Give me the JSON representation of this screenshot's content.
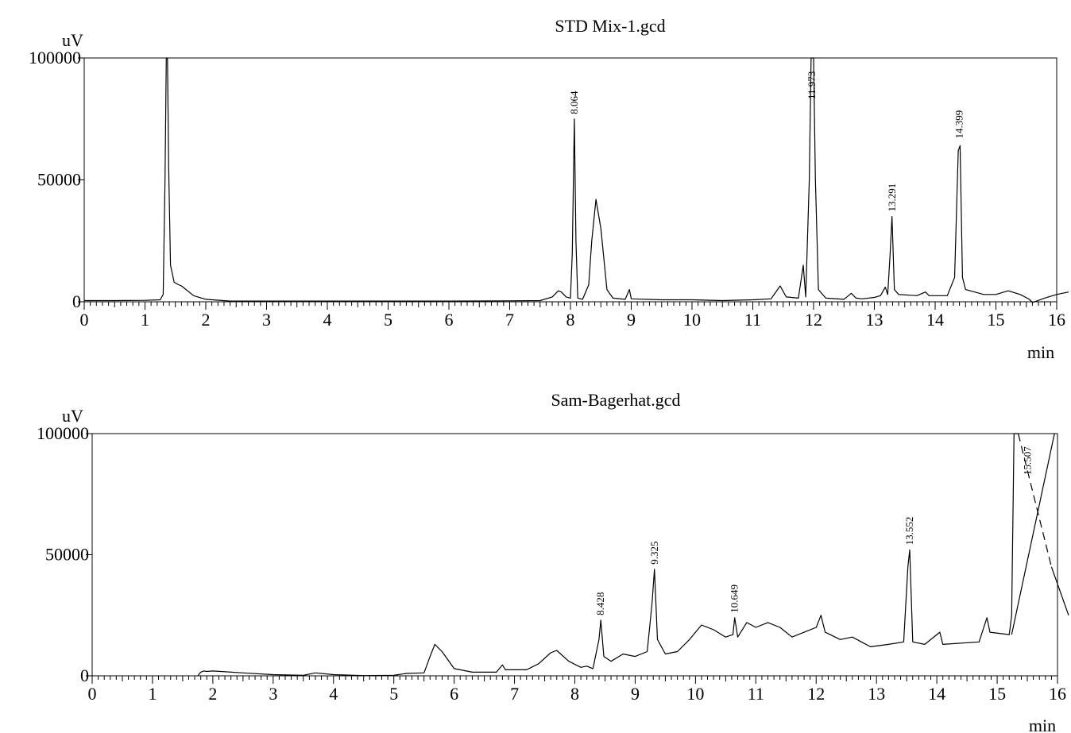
{
  "chart_data": [
    {
      "type": "line",
      "title": "STD Mix-1.gcd",
      "xlabel": "min",
      "ylabel": "uV",
      "xlim": [
        0,
        16
      ],
      "ylim": [
        0,
        100000
      ],
      "x_ticks": [
        "0",
        "1",
        "2",
        "3",
        "4",
        "5",
        "6",
        "7",
        "8",
        "9",
        "10",
        "11",
        "12",
        "13",
        "14",
        "15",
        "16"
      ],
      "y_ticks": [
        "0",
        "50000",
        "100000"
      ],
      "peaks": [
        {
          "rt": 8.064,
          "label": "8.064",
          "height": 75000
        },
        {
          "rt": 11.973,
          "label": "11.973",
          "height": 100000
        },
        {
          "rt": 13.291,
          "label": "13.291",
          "height": 35000
        },
        {
          "rt": 14.399,
          "label": "14.399",
          "height": 65000
        }
      ],
      "series": [
        {
          "values": [
            [
              0,
              500
            ],
            [
              0.5,
              500
            ],
            [
              1.0,
              600
            ],
            [
              1.25,
              800
            ],
            [
              1.3,
              3000
            ],
            [
              1.33,
              50000
            ],
            [
              1.35,
              100000
            ],
            [
              1.37,
              100000
            ],
            [
              1.39,
              55000
            ],
            [
              1.42,
              15000
            ],
            [
              1.48,
              8000
            ],
            [
              1.55,
              7000
            ],
            [
              1.6,
              6500
            ],
            [
              1.8,
              2500
            ],
            [
              2.0,
              1000
            ],
            [
              2.4,
              300
            ],
            [
              3,
              300
            ],
            [
              4,
              300
            ],
            [
              5,
              300
            ],
            [
              6,
              300
            ],
            [
              7,
              400
            ],
            [
              7.5,
              500
            ],
            [
              7.7,
              2000
            ],
            [
              7.8,
              4500
            ],
            [
              7.85,
              4000
            ],
            [
              7.93,
              2000
            ],
            [
              8.0,
              1500
            ],
            [
              8.03,
              20000
            ],
            [
              8.064,
              75000
            ],
            [
              8.09,
              25000
            ],
            [
              8.12,
              1500
            ],
            [
              8.2,
              1000
            ],
            [
              8.3,
              7000
            ],
            [
              8.35,
              25000
            ],
            [
              8.42,
              42000
            ],
            [
              8.5,
              30000
            ],
            [
              8.6,
              5000
            ],
            [
              8.7,
              1500
            ],
            [
              8.9,
              1000
            ],
            [
              8.97,
              5000
            ],
            [
              9.0,
              1200
            ],
            [
              9.5,
              800
            ],
            [
              10,
              800
            ],
            [
              10.5,
              500
            ],
            [
              11,
              800
            ],
            [
              11.3,
              1200
            ],
            [
              11.45,
              6500
            ],
            [
              11.55,
              2000
            ],
            [
              11.75,
              1500
            ],
            [
              11.83,
              15000
            ],
            [
              11.87,
              2000
            ],
            [
              11.93,
              50000
            ],
            [
              11.96,
              100000
            ],
            [
              12.0,
              100000
            ],
            [
              12.03,
              50000
            ],
            [
              12.08,
              5000
            ],
            [
              12.2,
              1500
            ],
            [
              12.5,
              1000
            ],
            [
              12.62,
              3500
            ],
            [
              12.7,
              1500
            ],
            [
              12.8,
              1200
            ],
            [
              13.0,
              1800
            ],
            [
              13.1,
              2500
            ],
            [
              13.18,
              6000
            ],
            [
              13.22,
              3000
            ],
            [
              13.26,
              20000
            ],
            [
              13.29,
              35000
            ],
            [
              13.33,
              5000
            ],
            [
              13.4,
              3000
            ],
            [
              13.7,
              2500
            ],
            [
              13.84,
              4000
            ],
            [
              13.9,
              2500
            ],
            [
              14.2,
              2500
            ],
            [
              14.32,
              10000
            ],
            [
              14.38,
              62000
            ],
            [
              14.41,
              64000
            ],
            [
              14.45,
              10000
            ],
            [
              14.5,
              5000
            ],
            [
              14.8,
              3000
            ],
            [
              15.0,
              3000
            ],
            [
              15.2,
              4500
            ],
            [
              15.4,
              3000
            ],
            [
              15.55,
              1000
            ],
            [
              15.6,
              -300
            ],
            [
              15.8,
              1500
            ],
            [
              16.0,
              3000
            ],
            [
              16.2,
              4000
            ]
          ]
        }
      ]
    },
    {
      "type": "line",
      "title": "Sam-Bagerhat.gcd",
      "xlabel": "min",
      "ylabel": "uV",
      "xlim": [
        0,
        16
      ],
      "ylim": [
        0,
        100000
      ],
      "x_ticks": [
        "0",
        "1",
        "2",
        "3",
        "4",
        "5",
        "6",
        "7",
        "8",
        "9",
        "10",
        "11",
        "12",
        "13",
        "14",
        "15",
        "16"
      ],
      "y_ticks": [
        "0",
        "50000",
        "100000"
      ],
      "peaks": [
        {
          "rt": 8.428,
          "label": "8.428",
          "height": 23000
        },
        {
          "rt": 9.325,
          "label": "9.325",
          "height": 44000
        },
        {
          "rt": 10.649,
          "label": "10.649",
          "height": 24000
        },
        {
          "rt": 13.552,
          "label": "13.552",
          "height": 52000
        },
        {
          "rt": 15.507,
          "label": "15.507",
          "height": 100000
        }
      ],
      "series": [
        {
          "values": [
            [
              1.75,
              0
            ],
            [
              1.8,
              1500
            ],
            [
              1.85,
              2000
            ],
            [
              1.9,
              1800
            ],
            [
              2.0,
              2000
            ],
            [
              2.5,
              1200
            ],
            [
              3,
              500
            ],
            [
              3.5,
              200
            ],
            [
              3.7,
              1200
            ],
            [
              4,
              500
            ],
            [
              4.5,
              100
            ],
            [
              5,
              200
            ],
            [
              5.2,
              1000
            ],
            [
              5.5,
              1200
            ],
            [
              5.6,
              8000
            ],
            [
              5.68,
              13000
            ],
            [
              5.8,
              10000
            ],
            [
              6.0,
              3000
            ],
            [
              6.3,
              1500
            ],
            [
              6.7,
              1500
            ],
            [
              6.8,
              4500
            ],
            [
              6.85,
              2500
            ],
            [
              7.2,
              2500
            ],
            [
              7.4,
              5000
            ],
            [
              7.6,
              9500
            ],
            [
              7.7,
              10500
            ],
            [
              7.9,
              6000
            ],
            [
              8.1,
              3500
            ],
            [
              8.2,
              4000
            ],
            [
              8.3,
              3000
            ],
            [
              8.4,
              15000
            ],
            [
              8.43,
              23000
            ],
            [
              8.48,
              8000
            ],
            [
              8.6,
              6000
            ],
            [
              8.8,
              9000
            ],
            [
              9.0,
              8000
            ],
            [
              9.2,
              10000
            ],
            [
              9.28,
              30000
            ],
            [
              9.32,
              44000
            ],
            [
              9.37,
              15000
            ],
            [
              9.5,
              9000
            ],
            [
              9.7,
              10000
            ],
            [
              9.9,
              15000
            ],
            [
              10.0,
              18000
            ],
            [
              10.1,
              21000
            ],
            [
              10.3,
              19000
            ],
            [
              10.5,
              16000
            ],
            [
              10.62,
              17000
            ],
            [
              10.65,
              24000
            ],
            [
              10.7,
              16000
            ],
            [
              10.85,
              22000
            ],
            [
              11.0,
              20000
            ],
            [
              11.2,
              22000
            ],
            [
              11.4,
              20000
            ],
            [
              11.6,
              16000
            ],
            [
              11.8,
              18000
            ],
            [
              12.0,
              20000
            ],
            [
              12.08,
              25000
            ],
            [
              12.15,
              18000
            ],
            [
              12.4,
              15000
            ],
            [
              12.6,
              16000
            ],
            [
              12.75,
              14000
            ],
            [
              12.9,
              12000
            ],
            [
              13.2,
              13000
            ],
            [
              13.45,
              14000
            ],
            [
              13.52,
              45000
            ],
            [
              13.55,
              52000
            ],
            [
              13.6,
              14000
            ],
            [
              13.8,
              13000
            ],
            [
              14.05,
              18000
            ],
            [
              14.1,
              13000
            ],
            [
              14.7,
              14000
            ],
            [
              14.83,
              24000
            ],
            [
              14.88,
              18000
            ],
            [
              15.2,
              17000
            ],
            [
              15.24,
              25000
            ],
            [
              15.28,
              100000
            ],
            [
              15.35,
              100000
            ]
          ]
        },
        {
          "values": [
            [
              15.24,
              17000
            ],
            [
              15.95,
              100000
            ]
          ]
        },
        {
          "values": [
            [
              15.35,
              100000
            ],
            [
              15.6,
              75000
            ],
            [
              15.8,
              55000
            ],
            [
              15.9,
              45000
            ]
          ],
          "style": "dashed"
        },
        {
          "values": [
            [
              15.9,
              45000
            ],
            [
              16.2,
              25000
            ]
          ]
        }
      ]
    }
  ]
}
